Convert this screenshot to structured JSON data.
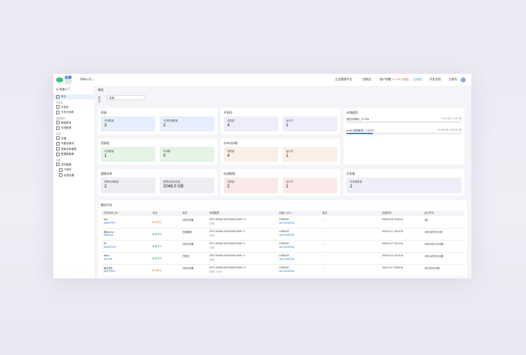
{
  "app": {
    "logo_name": "蓝鲸",
    "logo_sub": "LANJING CLOUD"
  },
  "topbar": {
    "org_select": "所有公司",
    "items": [
      "企业管理平台",
      "控制台",
      "账户余额",
      "¥ 0.00 (充值)",
      "正式站",
      "开发文档",
      "主账号"
    ]
  },
  "sidebar": {
    "title": "AI 快速入门",
    "items": [
      {
        "type": "item",
        "label": "概览",
        "active": true
      },
      {
        "type": "head",
        "label": "开发机"
      },
      {
        "type": "item",
        "label": "开发机"
      },
      {
        "type": "item",
        "label": "分布式训练"
      },
      {
        "type": "head",
        "label": "推理服务"
      },
      {
        "type": "item",
        "label": "模型服务"
      },
      {
        "type": "item",
        "label": "在线推理"
      },
      {
        "type": "head",
        "label": "资源"
      },
      {
        "type": "item",
        "label": "存储"
      },
      {
        "type": "item",
        "label": "专属资源池"
      },
      {
        "type": "item",
        "label": "镜像仓库管理"
      },
      {
        "type": "item",
        "label": "数据集管理"
      },
      {
        "type": "head",
        "label": "设置"
      },
      {
        "type": "item",
        "label": "成员管理"
      },
      {
        "type": "item",
        "label": "子账号",
        "sub": true
      },
      {
        "type": "item",
        "label": "权限设置",
        "sub": true
      }
    ]
  },
  "main": {
    "breadcrumb": "概览",
    "filter": {
      "label": "项目",
      "value": "全部"
    },
    "cards": {
      "quota": {
        "title": "资源",
        "tiles": [
          {
            "label": "可用数量",
            "value": "3"
          },
          {
            "label": "可用存储数量",
            "value": "2"
          }
        ]
      },
      "devbox": {
        "title": "开发机",
        "tiles": [
          {
            "label": "总数量",
            "value": "4"
          },
          {
            "label": "运行中",
            "value": "1"
          }
        ]
      },
      "storage": {
        "title": "存储使用",
        "rows": [
          {
            "name": "我的存储卷1_377346",
            "value": "0.00 GB / 1.00 GB",
            "fill": 0.0
          },
          {
            "name": "public-数据集卷1_719043",
            "value": "23.36 GB / 100.00 GB",
            "fill": 0.23
          }
        ]
      },
      "inference": {
        "title": "资源池",
        "tiles": [
          {
            "label": "可用数量",
            "value": "1"
          },
          {
            "label": "可用数",
            "value": "0"
          }
        ]
      },
      "training": {
        "title": "分布式训练",
        "tiles": [
          {
            "label": "总数量",
            "value": "4"
          },
          {
            "label": "运行中",
            "value": "1"
          }
        ]
      },
      "images": {
        "title": "镜像仓库",
        "tiles": [
          {
            "label": "镜像仓库数量",
            "value": "2"
          },
          {
            "label": "镜像仓库总容量",
            "value": "2048.0 GB"
          }
        ]
      },
      "online": {
        "title": "在线推理",
        "tiles": [
          {
            "label": "总数量",
            "value": "2"
          },
          {
            "label": "运行中",
            "value": "1"
          }
        ]
      },
      "devimage": {
        "title": "开发者",
        "tiles": [
          {
            "label": "开发者数量",
            "value": "2"
          }
        ]
      }
    },
    "table": {
      "title": "最近任务",
      "columns": [
        "任务名称 (ID)",
        "状态",
        "类型",
        "资源配置",
        "创建人 (ID)",
        "描述",
        "创建时间",
        "运行时长"
      ],
      "rows": [
        {
          "name": "rspr",
          "id": "job5827991",
          "status": "已停止",
          "status_type": "stop",
          "type": "分布式训练",
          "res": "GPU: NVIDIA A100 80GB SXM4 * 8",
          "res2": "存储: -",
          "creator": "LY655437",
          "creator_id": "user-63230046",
          "desc": "--",
          "created": "2025-03-06 15:45:41",
          "duration": "0秒"
        },
        {
          "name": "演示demo",
          "id": "hsr68106",
          "status": "运行中",
          "status_type": "run",
          "type": "在线推理",
          "res": "GPU: NVIDIA A100 80GB SXM4 * 1",
          "res2": "存储: -",
          "creator": "LY655437",
          "creator_id": "user-63230046",
          "desc": "--",
          "created": "2025-02-17 18:13:35",
          "duration": "26天16时2分20秒"
        },
        {
          "name": "58",
          "id": "job5947045",
          "status": "运行中",
          "status_type": "run",
          "type": "分布式训练",
          "res": "GPU: NVIDIA A100 80GB SXM4 * 1",
          "res2": "存储: -",
          "creator": "LY655437",
          "creator_id": "user-63230046",
          "desc": "--",
          "created": "2025-02-17 15:12:54",
          "duration": "26天13时21分36秒"
        },
        {
          "name": "demo",
          "id": "dev1183",
          "status": "运行中",
          "status_type": "run",
          "type": "开发机",
          "res": "GPU: NVIDIA A100 80GB SXM4 * 1",
          "res2": "存储: -",
          "creator": "LY655437",
          "creator_id": "user-63230046",
          "desc": "--",
          "created": "2025-02-14 14:13:45",
          "duration": "29天14时20分45秒"
        },
        {
          "name": "演示任务",
          "id": "job5751647",
          "status": "已停止",
          "status_type": "stop",
          "type": "分布式训练",
          "res": "GPU: NVIDIA A100 80GB SXM4 * 8",
          "res2": "存储: 100GB",
          "creator": "LY655437",
          "creator_id": "user-63230046",
          "desc": "--",
          "created": "2024-11-27 18:59:46",
          "duration": "4天7时0分30秒"
        }
      ]
    }
  },
  "colors": {
    "accent": "#2f6fe4",
    "running": "#2a9d4a",
    "stopped": "#e07820"
  }
}
